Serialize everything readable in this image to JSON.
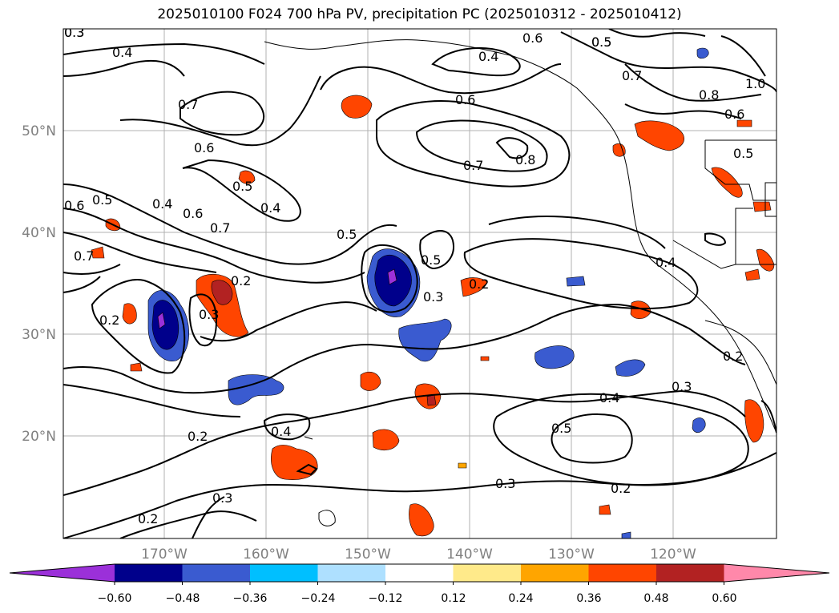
{
  "title": "2025010100 F024 700 hPa PV, precipitation PC (2025010312 - 2025010412)",
  "map": {
    "lon_ticks": [
      "170°W",
      "160°W",
      "150°W",
      "140°W",
      "130°W",
      "120°W"
    ],
    "lat_ticks": [
      "50°N",
      "40°N",
      "30°N",
      "20°N"
    ],
    "contour_labels": [
      "0.3",
      "0.4",
      "0.6",
      "0.4",
      "0.5",
      "0.7",
      "0.6",
      "0.6",
      "0.8",
      "0.7",
      "1.0",
      "0.8",
      "0.6",
      "0.5",
      "0.7",
      "0.5",
      "0.6",
      "0.5",
      "0.5",
      "0.4",
      "0.6",
      "0.7",
      "0.4",
      "0.7",
      "0.5",
      "0.5",
      "0.4",
      "0.2",
      "0.3",
      "0.2",
      "0.3",
      "0.2",
      "0.2",
      "0.4",
      "0.3",
      "0.2",
      "0.4",
      "0.5",
      "0.3",
      "0.2",
      "0.3",
      "0.2",
      "0.3"
    ]
  },
  "colorbar": {
    "tick_labels": [
      "−0.60",
      "−0.48",
      "−0.36",
      "−0.24",
      "−0.12",
      "0.12",
      "0.24",
      "0.36",
      "0.48",
      "0.60"
    ],
    "under_color": "#9b30d9",
    "over_color": "#ff88aa",
    "colors": [
      "#00008b",
      "#3a5bd0",
      "#00bfff",
      "#aee0ff",
      "#ffffff",
      "#ffea8a",
      "#ffa500",
      "#ff4500",
      "#b22222",
      "#ff88aa"
    ]
  }
}
